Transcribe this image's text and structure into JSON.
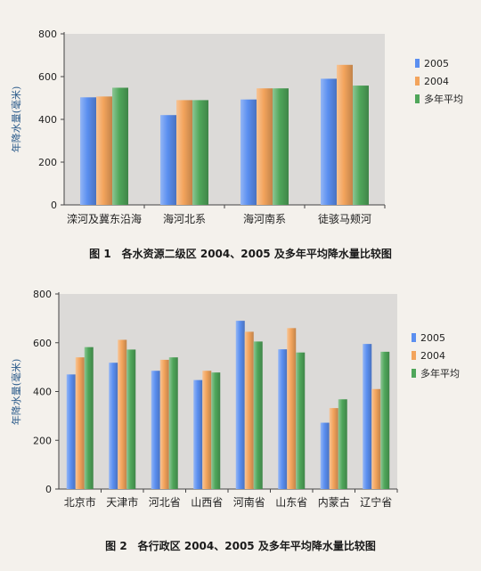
{
  "chart_data": [
    {
      "type": "bar",
      "title": "图 1　各水资源二级区 2004、2005 及多年平均降水量比较图",
      "ylabel": "年降水量(毫米)",
      "ylim": [
        0,
        800
      ],
      "yticks": [
        "0",
        "200",
        "400",
        "600",
        "800"
      ],
      "categories": [
        "滦河及冀东沿海",
        "海河北系",
        "海河南系",
        "徒骇马颊河"
      ],
      "series": [
        {
          "name": "2005",
          "color": "#5b8ff0",
          "values": [
            503,
            420,
            493,
            590
          ]
        },
        {
          "name": "2004",
          "color": "#f3a45c",
          "values": [
            507,
            490,
            545,
            655
          ]
        },
        {
          "name": "多年平均",
          "color": "#4fa65a",
          "values": [
            548,
            490,
            545,
            558
          ]
        }
      ],
      "legend": "right",
      "grid": false
    },
    {
      "type": "bar",
      "title": "图 2　各行政区 2004、2005 及多年平均降水量比较图",
      "ylabel": "年降水量(毫米)",
      "ylim": [
        0,
        800
      ],
      "yticks": [
        "0",
        "200",
        "400",
        "600",
        "800"
      ],
      "categories": [
        "北京市",
        "天津市",
        "河北省",
        "山西省",
        "河南省",
        "山东省",
        "内蒙古",
        "辽宁省"
      ],
      "series": [
        {
          "name": "2005",
          "color": "#5b8ff0",
          "values": [
            470,
            518,
            485,
            447,
            690,
            573,
            272,
            595
          ]
        },
        {
          "name": "2004",
          "color": "#f3a45c",
          "values": [
            540,
            612,
            530,
            485,
            645,
            660,
            332,
            410
          ]
        },
        {
          "name": "多年平均",
          "color": "#4fa65a",
          "values": [
            582,
            572,
            540,
            478,
            605,
            560,
            368,
            563
          ]
        }
      ],
      "legend": "right",
      "grid": false
    }
  ]
}
